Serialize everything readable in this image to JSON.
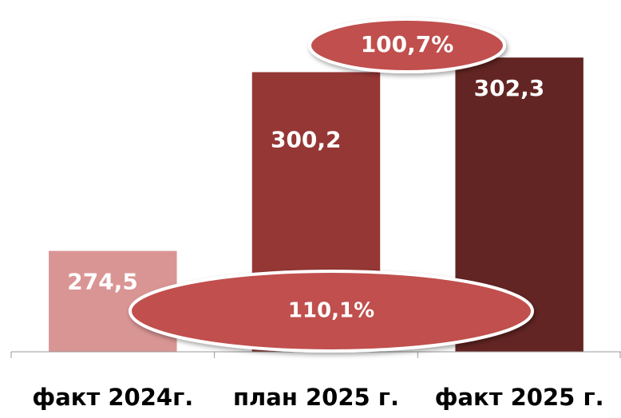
{
  "chart_data": {
    "type": "bar",
    "categories": [
      "факт 2024г.",
      "план 2025 г.",
      "факт 2025 г."
    ],
    "values": [
      274.5,
      300.2,
      302.3
    ],
    "value_labels": [
      "274,5",
      "300,2",
      "302,3"
    ],
    "colors": [
      "#d99594",
      "#953735",
      "#632523"
    ],
    "ylim": [
      260,
      310
    ],
    "annotations": [
      "100,7%",
      "110,1%"
    ]
  }
}
